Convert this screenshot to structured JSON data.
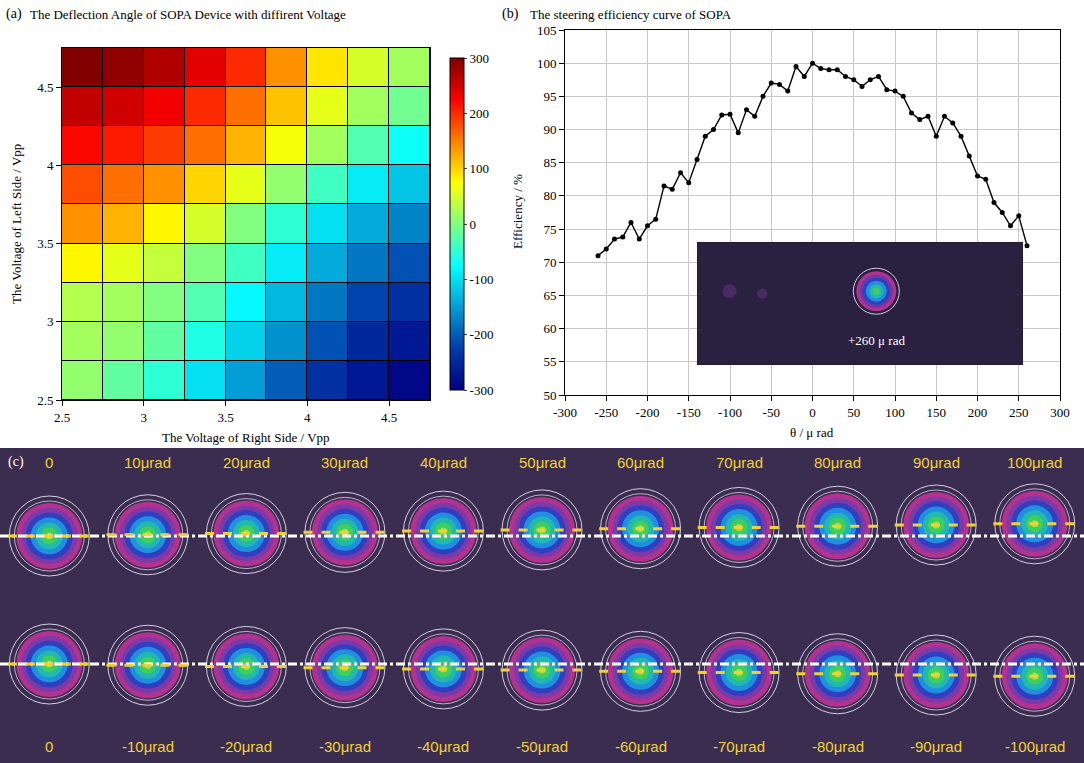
{
  "chart_data": [
    {
      "type": "heatmap",
      "panel_label": "(a)",
      "title": "The Deflection Angle of SOPA Device with diffirent Voltage",
      "x_label": "The Voltage of Right Side / Vpp",
      "y_label": "The Voltage of Left Side / Vpp",
      "x": [
        2.625,
        2.875,
        3.125,
        3.375,
        3.625,
        3.875,
        4.125,
        4.375,
        4.625
      ],
      "y": [
        2.625,
        2.875,
        3.125,
        3.375,
        3.625,
        3.875,
        4.125,
        4.375,
        4.625
      ],
      "cells": [
        [
          10,
          -20,
          -50,
          -100,
          -150,
          -200,
          -240,
          -270,
          -290
        ],
        [
          20,
          10,
          -20,
          -60,
          -110,
          -160,
          -210,
          -250,
          -270
        ],
        [
          30,
          20,
          0,
          -30,
          -80,
          -130,
          -180,
          -220,
          -240
        ],
        [
          80,
          60,
          40,
          0,
          -40,
          -90,
          -140,
          -180,
          -210
        ],
        [
          140,
          120,
          80,
          50,
          0,
          -50,
          -100,
          -140,
          -170
        ],
        [
          180,
          160,
          140,
          100,
          60,
          10,
          -40,
          -90,
          -120
        ],
        [
          220,
          210,
          190,
          160,
          120,
          70,
          20,
          -30,
          -70
        ],
        [
          260,
          250,
          230,
          200,
          160,
          110,
          60,
          20,
          -10
        ],
        [
          300,
          290,
          270,
          240,
          200,
          140,
          90,
          50,
          20
        ]
      ],
      "xlim": [
        2.5,
        4.75
      ],
      "xticks": [
        2.5,
        3,
        3.5,
        4,
        4.5
      ],
      "ylim": [
        2.5,
        4.75
      ],
      "yticks": [
        2.5,
        3,
        3.5,
        4,
        4.5
      ],
      "colorbar_range": [
        -300,
        300
      ],
      "colorbar_ticks": [
        -300,
        -200,
        -100,
        0,
        100,
        200,
        300
      ]
    },
    {
      "type": "line",
      "panel_label": "(b)",
      "title": "The steering efficiency curve of SOPA",
      "x_label": "θ / μ rad",
      "y_label": "Efficiency / %",
      "x": [
        -260,
        -250,
        -240,
        -230,
        -220,
        -210,
        -200,
        -190,
        -180,
        -170,
        -160,
        -150,
        -140,
        -130,
        -120,
        -110,
        -100,
        -90,
        -80,
        -70,
        -60,
        -50,
        -40,
        -30,
        -20,
        -10,
        0,
        10,
        20,
        30,
        40,
        50,
        60,
        70,
        80,
        90,
        100,
        110,
        120,
        130,
        140,
        150,
        160,
        170,
        180,
        190,
        200,
        210,
        220,
        230,
        240,
        250,
        260
      ],
      "values": [
        71,
        72,
        73.5,
        73.8,
        76,
        73.5,
        75.5,
        76.5,
        81.5,
        81,
        83.5,
        82,
        85.5,
        89,
        90,
        92.2,
        92.3,
        89.5,
        93,
        92,
        95,
        97,
        96.8,
        95.8,
        99.5,
        98,
        100,
        99.2,
        99,
        99,
        98,
        97.5,
        96.5,
        97.5,
        98,
        96,
        95.8,
        95,
        92.5,
        91.5,
        92,
        89,
        92,
        91,
        89,
        86,
        83,
        82.5,
        79,
        77.5,
        75.5,
        77,
        72.5
      ],
      "color": "#000000",
      "marker": "circle",
      "xlim": [
        -300,
        300
      ],
      "xticks": [
        -300,
        -250,
        -200,
        -150,
        -100,
        -50,
        0,
        50,
        100,
        150,
        200,
        250,
        300
      ],
      "ylim": [
        50,
        105
      ],
      "yticks": [
        50,
        55,
        60,
        65,
        70,
        75,
        80,
        85,
        90,
        95,
        100,
        105
      ],
      "grid": true,
      "inset_text": "+260 μ rad"
    },
    {
      "type": "spots",
      "panel_label": "(c)",
      "rows": [
        {
          "categories": [
            "0",
            "10μrad",
            "20μrad",
            "30μrad",
            "40μrad",
            "50μrad",
            "60μrad",
            "70μrad",
            "80μrad",
            "90μrad",
            "100μrad"
          ],
          "values": [
            0,
            10,
            20,
            30,
            40,
            50,
            60,
            70,
            80,
            90,
            100
          ]
        },
        {
          "categories": [
            "0",
            "-10μrad",
            "-20μrad",
            "-30μrad",
            "-40μrad",
            "-50μrad",
            "-60μrad",
            "-70μrad",
            "-80μrad",
            "-90μrad",
            "-100μrad"
          ],
          "values": [
            0,
            -10,
            -20,
            -30,
            -40,
            -50,
            -60,
            -70,
            -80,
            -90,
            -100
          ]
        }
      ],
      "ylim": [
        -500,
        500
      ],
      "tick_labels": false,
      "color": "#f2d230"
    }
  ]
}
